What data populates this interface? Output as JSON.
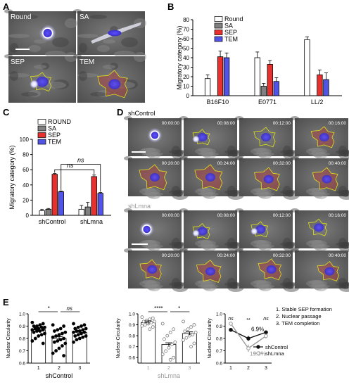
{
  "panels": {
    "A": {
      "letter": "A",
      "labels": [
        "Round",
        "SA",
        "SEP",
        "TEM"
      ]
    },
    "B": {
      "letter": "B",
      "ylabel": "Migratory category (%)",
      "legend": [
        "Round",
        "SA",
        "SEP",
        "TEM"
      ],
      "groups": [
        "B16F10",
        "E0771",
        "LL/2"
      ],
      "zero_label": "0"
    },
    "C": {
      "letter": "C",
      "ylabel": "Migratory category (%)",
      "legend": [
        "ROUND",
        "SA",
        "SEP",
        "TEM"
      ],
      "groups": [
        "shControl",
        "shLmna"
      ],
      "ns": "ns"
    },
    "D": {
      "letter": "D",
      "title_control": "shControl",
      "title_lmna": "shLmna",
      "times": [
        "00:00:00",
        "00:08:00",
        "00:12:00",
        "00:16:00",
        "00:20:00",
        "00:24:00",
        "00:32:00",
        "00:40:00"
      ]
    },
    "E": {
      "letter": "E",
      "ylabel": "Nuclear Circularity",
      "sub1_title": "shControl",
      "sub2_title": "shLmna",
      "xticks": [
        "1",
        "2",
        "3"
      ],
      "sig1": [
        "*",
        "ns"
      ],
      "sig2": [
        "****",
        "*"
      ],
      "sig3": [
        "ns",
        "**",
        "ns"
      ],
      "pct1": "6.9%",
      "pct2": "19.8%",
      "legend3": [
        "shControl",
        "shLmna"
      ],
      "steps": [
        "1.  Stable SEP formation",
        "2.  Nuclear passage",
        "3.  TEM completion"
      ]
    }
  },
  "colors": {
    "round": "#ffffff",
    "sa": "#808080",
    "sep": "#e8312f",
    "tem": "#5254e6",
    "ctrl": "#111111",
    "lmna": "#9a9a9a"
  },
  "chart_data": [
    {
      "type": "bar",
      "panel": "B",
      "categories": [
        "B16F10",
        "E0771",
        "LL/2"
      ],
      "series": [
        {
          "name": "Round",
          "values": [
            18,
            40,
            59
          ],
          "errors": [
            4,
            6,
            3
          ]
        },
        {
          "name": "SA",
          "values": [
            0,
            10,
            0
          ],
          "errors": [
            0,
            3,
            0
          ]
        },
        {
          "name": "SEP",
          "values": [
            41,
            33,
            22
          ],
          "errors": [
            6,
            4,
            5
          ]
        },
        {
          "name": "TEM",
          "values": [
            40,
            15,
            17
          ],
          "errors": [
            5,
            4,
            7
          ]
        }
      ],
      "ylabel": "Migratory category (%)",
      "ylim": [
        0,
        80
      ],
      "yticks": [
        0,
        10,
        20,
        30,
        40,
        50,
        60,
        70,
        80
      ],
      "legend": "top-right"
    },
    {
      "type": "bar",
      "panel": "C",
      "categories": [
        "shControl",
        "shLmna"
      ],
      "series": [
        {
          "name": "ROUND",
          "values": [
            6,
            8
          ],
          "errors": [
            2,
            5
          ]
        },
        {
          "name": "SA",
          "values": [
            8,
            11
          ],
          "errors": [
            1,
            6
          ]
        },
        {
          "name": "SEP",
          "values": [
            54,
            51
          ],
          "errors": [
            1,
            2
          ]
        },
        {
          "name": "TEM",
          "values": [
            31,
            29
          ],
          "errors": [
            1,
            1
          ]
        }
      ],
      "ylabel": "Migratory category (%)",
      "ylim": [
        0,
        100
      ],
      "yticks": [
        0,
        20,
        40,
        60,
        80,
        100
      ],
      "legend": "top-right"
    },
    {
      "type": "scatter",
      "panel": "E1",
      "title": "shControl",
      "categories": [
        "1",
        "2",
        "3"
      ],
      "means": [
        0.87,
        0.8,
        0.85
      ],
      "points": [
        [
          0.93,
          0.92,
          0.91,
          0.9,
          0.9,
          0.89,
          0.89,
          0.88,
          0.88,
          0.87,
          0.87,
          0.86,
          0.86,
          0.85,
          0.84,
          0.83,
          0.82,
          0.8,
          0.78,
          0.76
        ],
        [
          0.91,
          0.9,
          0.88,
          0.87,
          0.86,
          0.85,
          0.84,
          0.83,
          0.82,
          0.81,
          0.8,
          0.79,
          0.78,
          0.77,
          0.76,
          0.74,
          0.72,
          0.7,
          0.68,
          0.66
        ],
        [
          0.92,
          0.91,
          0.9,
          0.89,
          0.88,
          0.88,
          0.87,
          0.86,
          0.86,
          0.85,
          0.85,
          0.84,
          0.83,
          0.82,
          0.82,
          0.81,
          0.8,
          0.79,
          0.77
        ]
      ],
      "ylabel": "Nuclear Circularity",
      "ylim": [
        0.6,
        1.0
      ],
      "yticks": [
        0.6,
        0.7,
        0.8,
        0.9,
        1.0
      ]
    },
    {
      "type": "scatter",
      "panel": "E2",
      "title": "shLmna",
      "categories": [
        "1",
        "2",
        "3"
      ],
      "means": [
        0.92,
        0.72,
        0.82
      ],
      "points": [
        [
          0.97,
          0.96,
          0.95,
          0.94,
          0.93,
          0.93,
          0.92,
          0.91,
          0.9,
          0.89,
          0.88,
          0.86
        ],
        [
          0.91,
          0.86,
          0.83,
          0.8,
          0.77,
          0.74,
          0.72,
          0.69,
          0.66,
          0.63,
          0.6,
          0.58
        ],
        [
          0.93,
          0.9,
          0.88,
          0.86,
          0.84,
          0.83,
          0.81,
          0.8,
          0.78,
          0.76,
          0.73,
          0.7
        ]
      ],
      "ylabel": "Nuclear Circularity",
      "ylim": [
        0.55,
        1.0
      ],
      "yticks": [
        0.6,
        0.7,
        0.8,
        0.9,
        1.0
      ]
    },
    {
      "type": "line",
      "panel": "E3",
      "x": [
        1,
        2,
        3
      ],
      "series": [
        {
          "name": "shControl",
          "values": [
            0.87,
            0.8,
            0.85
          ],
          "errors": [
            0.01,
            0.02,
            0.01
          ]
        },
        {
          "name": "shLmna",
          "values": [
            0.92,
            0.72,
            0.82
          ],
          "errors": [
            0.01,
            0.03,
            0.02
          ]
        }
      ],
      "ylabel": "Nuclear Circularity",
      "ylim": [
        0.6,
        1.0
      ],
      "yticks": [
        0.6,
        0.7,
        0.8,
        0.9,
        1.0
      ],
      "legend": "bottom-right"
    }
  ]
}
